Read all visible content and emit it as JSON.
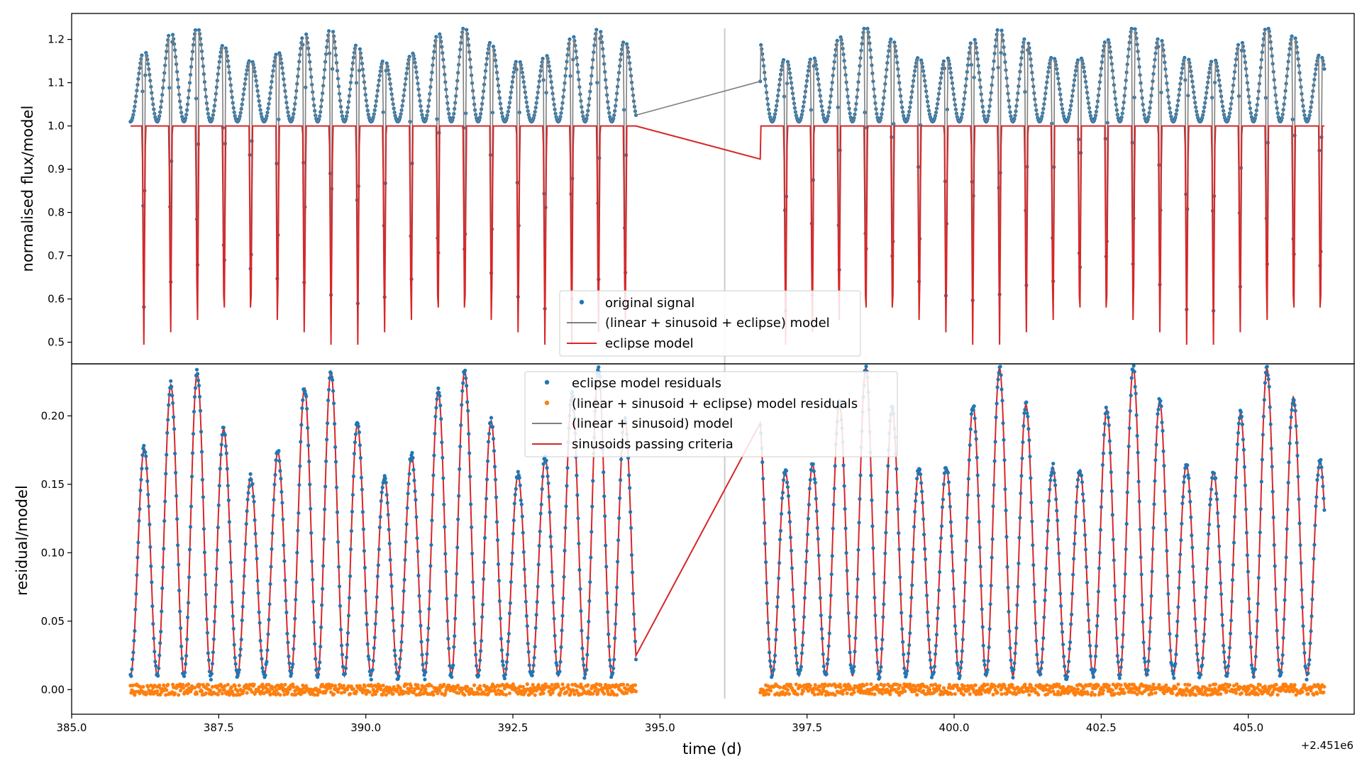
{
  "chart_data": [
    {
      "type": "line",
      "panel": "top",
      "ylabel": "normalised flux/model",
      "xlim": [
        385.0,
        406.8
      ],
      "ylim": [
        0.45,
        1.26
      ],
      "yticks": [
        0.5,
        0.6,
        0.7,
        0.8,
        0.9,
        1.0,
        1.1,
        1.2
      ],
      "gap": [
        394.6,
        396.7
      ],
      "vline_x": 396.1,
      "signal": {
        "period": 0.4545,
        "phase0": 386.0,
        "eclipse_depth": 0.52,
        "baseline": 1.0,
        "max_flux": 1.225
      },
      "series": [
        {
          "name": "original signal",
          "kind": "scatter",
          "color": "#1f77b4"
        },
        {
          "name": "(linear + sinusoid + eclipse) model",
          "kind": "line",
          "color": "#7f7f7f"
        },
        {
          "name": "eclipse model",
          "kind": "line",
          "color": "#d62728"
        }
      ],
      "legend": {
        "placement": "lower-center"
      }
    },
    {
      "type": "line",
      "panel": "bottom",
      "ylabel": "residual/model",
      "xlabel": "time (d)",
      "offset_text": "+2.451e6",
      "xlim": [
        385.0,
        406.8
      ],
      "ylim": [
        -0.018,
        0.238
      ],
      "xticks": [
        "385.0",
        "387.5",
        "390.0",
        "392.5",
        "395.0",
        "397.5",
        "400.0",
        "402.5",
        "405.0"
      ],
      "xtick_values": [
        385.0,
        387.5,
        390.0,
        392.5,
        395.0,
        397.5,
        400.0,
        402.5,
        405.0
      ],
      "yticks": [
        "0.00",
        "0.05",
        "0.10",
        "0.15",
        "0.20"
      ],
      "ytick_values": [
        0.0,
        0.05,
        0.1,
        0.15,
        0.2
      ],
      "gap": [
        394.6,
        396.7
      ],
      "vline_x": 396.1,
      "signal": {
        "period": 0.4545,
        "amplitude": 0.225,
        "min": 0.01
      },
      "series": [
        {
          "name": "eclipse model residuals",
          "kind": "scatter",
          "color": "#1f77b4"
        },
        {
          "name": "(linear + sinusoid + eclipse) model residuals",
          "kind": "scatter",
          "color": "#ff7f0e"
        },
        {
          "name": "(linear + sinusoid) model",
          "kind": "line",
          "color": "#7f7f7f"
        },
        {
          "name": "sinusoids passing criteria",
          "kind": "line",
          "color": "#d62728"
        }
      ],
      "legend": {
        "placement": "upper-center"
      }
    }
  ]
}
